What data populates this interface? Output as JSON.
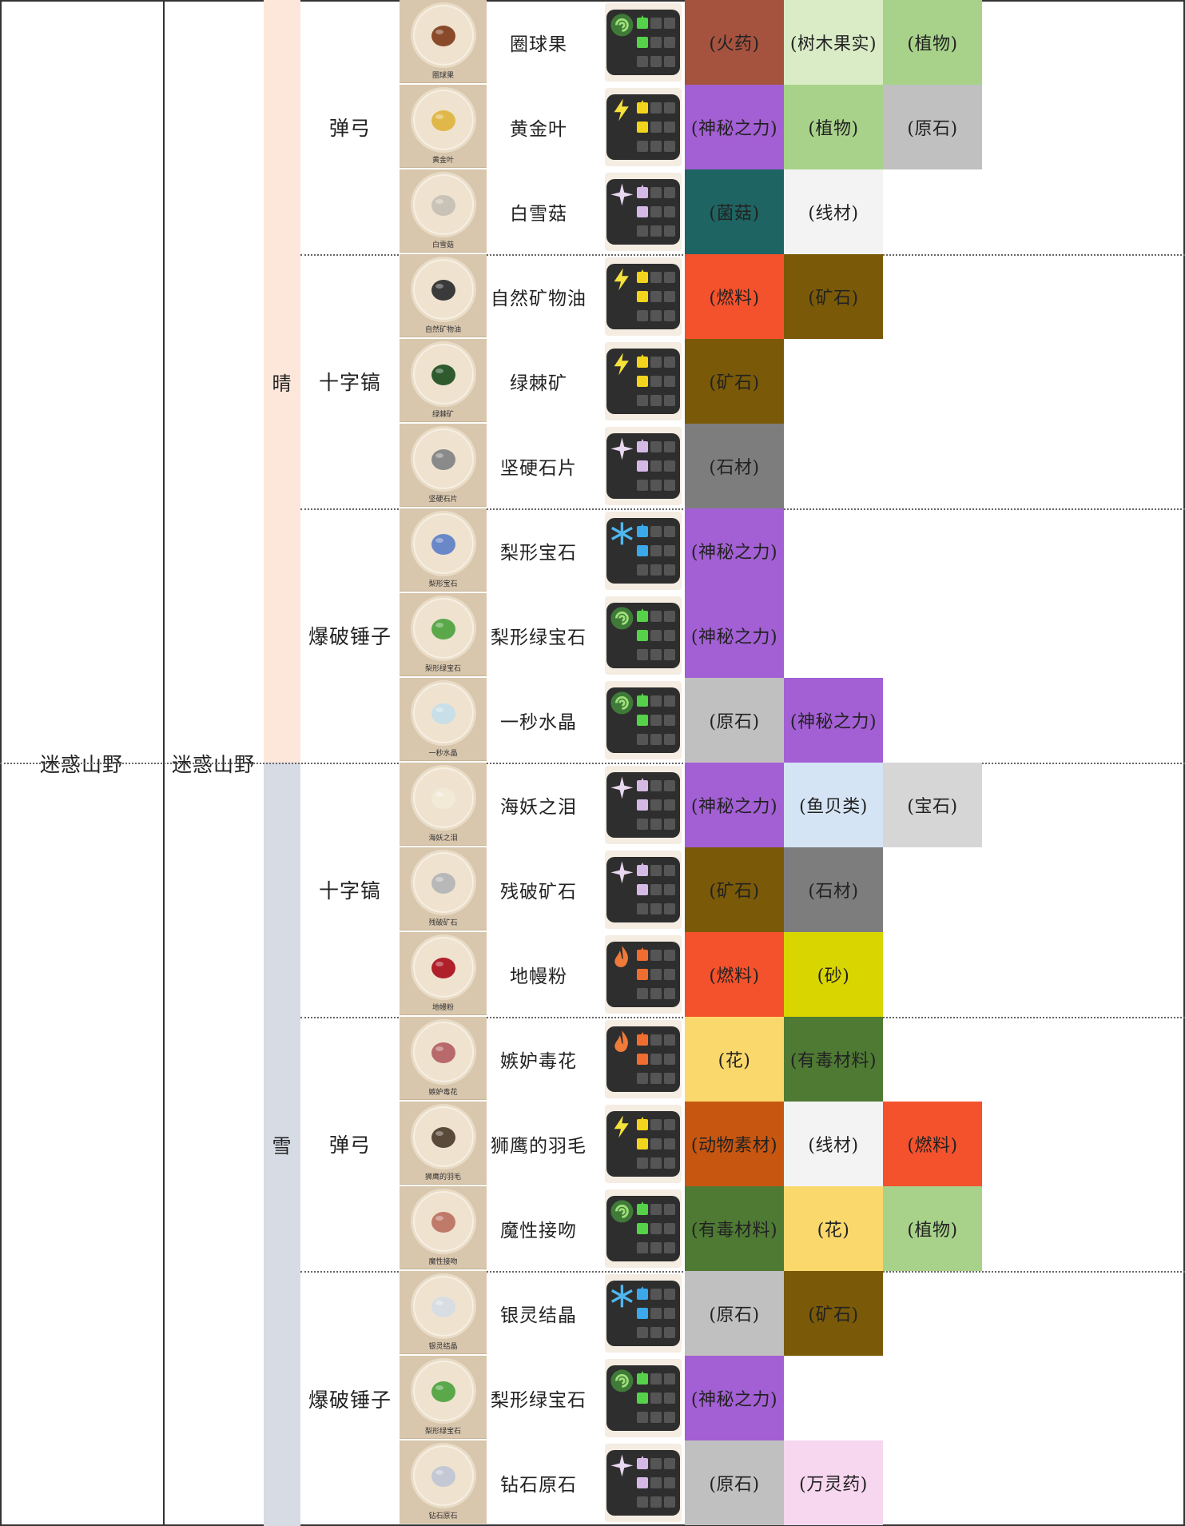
{
  "region": "迷惑山野",
  "area": "迷惑山野",
  "weather": [
    {
      "label": "晴",
      "color": "#fde7da"
    },
    {
      "label": "雪",
      "color": "#d7dbe4"
    }
  ],
  "tools": [
    "弹弓",
    "十字镐",
    "爆破锤子",
    "十字镐",
    "弹弓",
    "爆破锤子"
  ],
  "rows": [
    {
      "name": "圈球果",
      "caption": "圈球果",
      "element": "wind-icon",
      "pattern": "wind-star-square",
      "tags": [
        {
          "text": "(火药)",
          "color": "#a5523f"
        },
        {
          "text": "(树木果实)",
          "color": "#d9ecc6"
        },
        {
          "text": "(植物)",
          "color": "#a8d28a"
        }
      ]
    },
    {
      "name": "黄金叶",
      "caption": "黄金叶",
      "element": "lightning-icon",
      "pattern": "lightning-star-square",
      "tags": [
        {
          "text": "(神秘之力)",
          "color": "#a35fd4"
        },
        {
          "text": "(植物)",
          "color": "#a8d28a"
        },
        {
          "text": "(原石)",
          "color": "#c0c0c0"
        }
      ]
    },
    {
      "name": "白雪菇",
      "caption": "白雪菇",
      "element": "sparkle-icon",
      "pattern": "sparkle-square-star",
      "tags": [
        {
          "text": "(菌菇)",
          "color": "#1e6462"
        },
        {
          "text": "(线材)",
          "color": "#f3f3f3"
        }
      ]
    },
    {
      "name": "自然矿物油",
      "caption": "自然矿物油",
      "element": "lightning-icon",
      "pattern": "lightning-star-square-star",
      "tags": [
        {
          "text": "(燃料)",
          "color": "#f4522c"
        },
        {
          "text": "(矿石)",
          "color": "#7a5a08"
        }
      ]
    },
    {
      "name": "绿棘矿",
      "caption": "绿棘矿",
      "element": "lightning-icon",
      "pattern": "lightning-star-square",
      "tags": [
        {
          "text": "(矿石)",
          "color": "#7a5a08"
        }
      ]
    },
    {
      "name": "坚硬石片",
      "caption": "坚硬石片",
      "element": "sparkle-icon",
      "pattern": "sparkle-star-square",
      "tags": [
        {
          "text": "(石材)",
          "color": "#7d7d7d"
        }
      ]
    },
    {
      "name": "梨形宝石",
      "caption": "梨形宝石",
      "element": "snowflake-icon",
      "pattern": "snowflake-star",
      "tags": [
        {
          "text": "(神秘之力)",
          "color": "#a35fd4"
        }
      ]
    },
    {
      "name": "梨形绿宝石",
      "caption": "梨形绿宝石",
      "element": "wind-icon",
      "pattern": "wind-star-square",
      "tags": [
        {
          "text": "(神秘之力)",
          "color": "#a35fd4"
        }
      ]
    },
    {
      "name": "一秒水晶",
      "caption": "一秒水晶",
      "element": "wind-icon",
      "pattern": "wind-star-square-star",
      "tags": [
        {
          "text": "(原石)",
          "color": "#c0c0c0"
        },
        {
          "text": "(神秘之力)",
          "color": "#a35fd4"
        }
      ]
    },
    {
      "name": "海妖之泪",
      "caption": "海妖之泪",
      "element": "sparkle-icon",
      "pattern": "sparkle-star-square",
      "tags": [
        {
          "text": "(神秘之力)",
          "color": "#a35fd4"
        },
        {
          "text": "(鱼贝类)",
          "color": "#d5e4f4"
        },
        {
          "text": "(宝石)",
          "color": "#d6d6d6"
        }
      ]
    },
    {
      "name": "残破矿石",
      "caption": "残破矿石",
      "element": "sparkle-icon",
      "pattern": "sparkle-star-star",
      "tags": [
        {
          "text": "(矿石)",
          "color": "#7a5a08"
        },
        {
          "text": "(石材)",
          "color": "#7d7d7d"
        }
      ]
    },
    {
      "name": "地幔粉",
      "caption": "地幔粉",
      "element": "fire-icon",
      "pattern": "fire-star-square-star",
      "tags": [
        {
          "text": "(燃料)",
          "color": "#f4522c"
        },
        {
          "text": "(砂)",
          "color": "#d9d500"
        }
      ]
    },
    {
      "name": "嫉妒毒花",
      "caption": "嫉妒毒花",
      "element": "fire-icon",
      "pattern": "fire-star-square",
      "tags": [
        {
          "text": "(花)",
          "color": "#fbd86c"
        },
        {
          "text": "(有毒材料)",
          "color": "#4f7a34"
        }
      ]
    },
    {
      "name": "狮鹰的羽毛",
      "caption": "狮鹰的羽毛",
      "element": "lightning-icon",
      "pattern": "lightning-star-square",
      "tags": [
        {
          "text": "(动物素材)",
          "color": "#c75610"
        },
        {
          "text": "(线材)",
          "color": "#f3f3f3"
        },
        {
          "text": "(燃料)",
          "color": "#f4522c"
        }
      ]
    },
    {
      "name": "魔性接吻",
      "caption": "魔性接吻",
      "element": "wind-icon",
      "pattern": "wind-star-square",
      "tags": [
        {
          "text": "(有毒材料)",
          "color": "#4f7a34"
        },
        {
          "text": "(花)",
          "color": "#fbd86c"
        },
        {
          "text": "(植物)",
          "color": "#a8d28a"
        }
      ]
    },
    {
      "name": "银灵结晶",
      "caption": "银灵结晶",
      "element": "snowflake-icon",
      "pattern": "snowflake-star-square",
      "tags": [
        {
          "text": "(原石)",
          "color": "#c0c0c0"
        },
        {
          "text": "(矿石)",
          "color": "#7a5a08"
        }
      ]
    },
    {
      "name": "梨形绿宝石",
      "caption": "梨形绿宝石",
      "element": "wind-icon",
      "pattern": "wind-star-square",
      "tags": [
        {
          "text": "(神秘之力)",
          "color": "#a35fd4"
        }
      ]
    },
    {
      "name": "钻石原石",
      "caption": "钻石原石",
      "element": "sparkle-icon",
      "pattern": "sparkle-star-square-star",
      "tags": [
        {
          "text": "(原石)",
          "color": "#c0c0c0"
        },
        {
          "text": "(万灵药)",
          "color": "#f7d6ef"
        }
      ]
    }
  ]
}
